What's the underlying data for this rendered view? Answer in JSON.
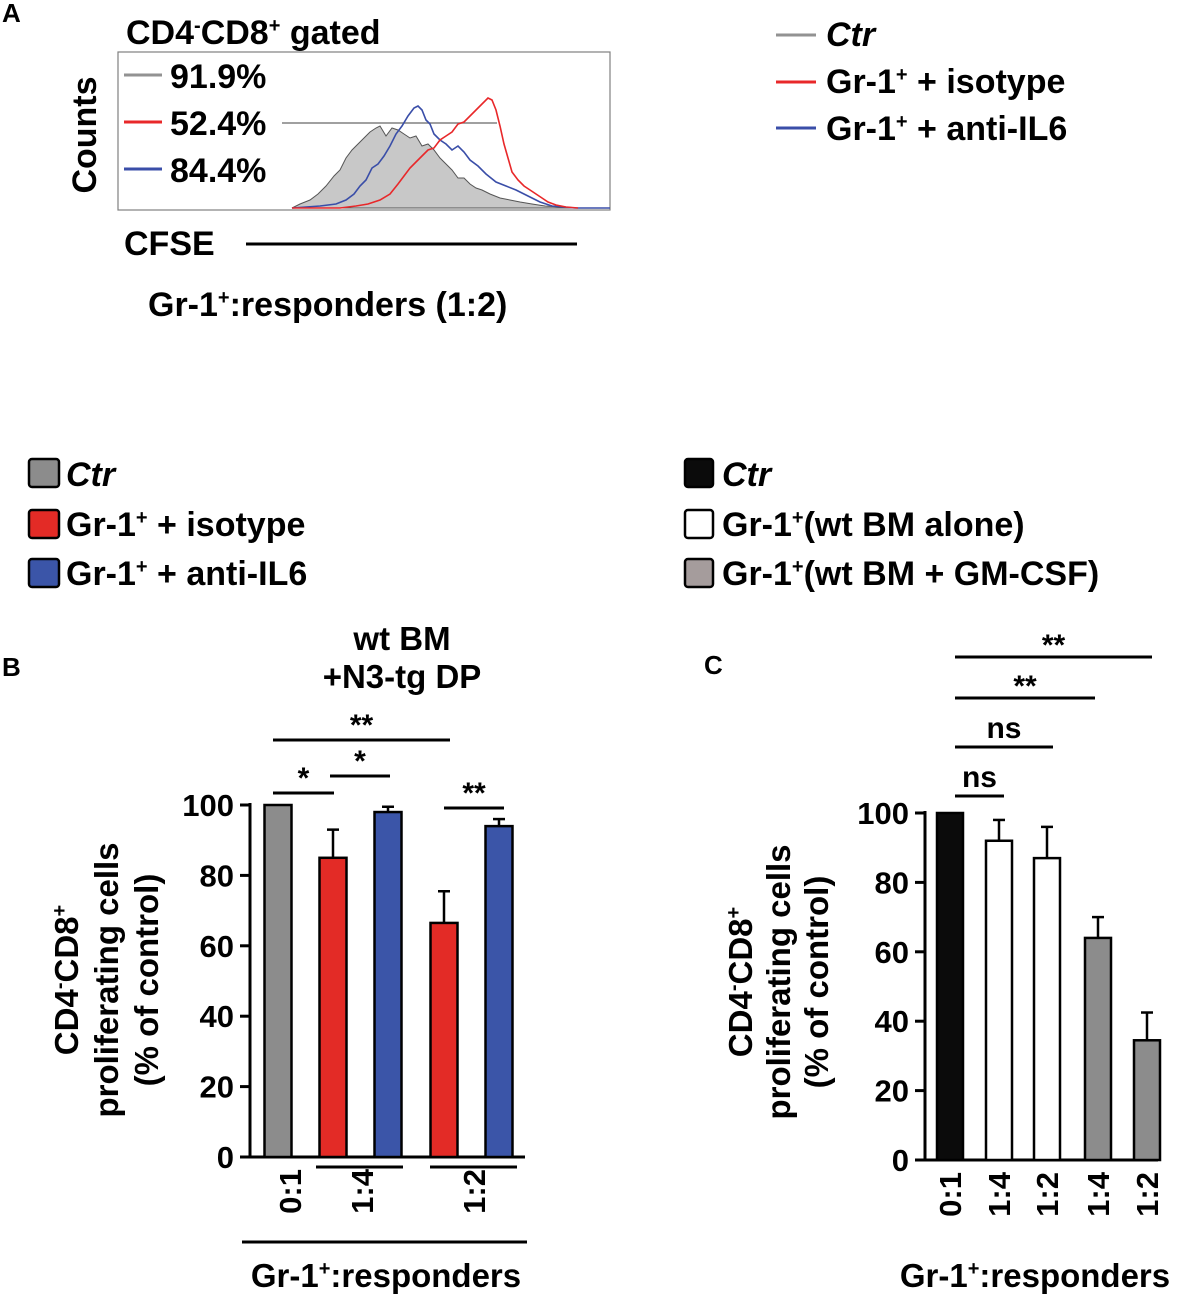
{
  "figure": {
    "panel_labels": {
      "a": "A",
      "b": "B",
      "c": "C"
    }
  },
  "panel_a": {
    "header_lead": "CD4",
    "header_sup1": "-",
    "header_mid": "CD8",
    "header_sup2": "+",
    "header_tail": " gated",
    "y_label": "Counts",
    "x_label": "CFSE",
    "subtitle_lead": "Gr-1",
    "subtitle_sup": "+",
    "subtitle_tail": ":responders (1:2)",
    "percentages": [
      {
        "value": "91.9%",
        "color": "#929292"
      },
      {
        "value": "52.4%",
        "color": "#e8282a"
      },
      {
        "value": "84.4%",
        "color": "#3a4ea8"
      }
    ],
    "legend": [
      {
        "label": "Ctr",
        "color": "#929292"
      },
      {
        "lead": "Gr-1",
        "sup": "+",
        "tail": " + isotype",
        "color": "#e8282a"
      },
      {
        "lead": "Gr-1",
        "sup": "+",
        "tail": " + anti-IL6",
        "color": "#3a4ea8"
      }
    ]
  },
  "legend_b": [
    {
      "label": "Ctr",
      "color": "#8c8c8c"
    },
    {
      "lead": "Gr-1",
      "sup": "+",
      "tail": " + isotype",
      "color": "#e32b26"
    },
    {
      "lead": "Gr-1",
      "sup": "+",
      "tail": " + anti-IL6",
      "color": "#3b55a8"
    }
  ],
  "legend_c": [
    {
      "label": "Ctr",
      "color": "#0b0b0b"
    },
    {
      "lead": "Gr-1",
      "sup": "+",
      "tail": "(wt BM alone)",
      "color": "#ffffff"
    },
    {
      "lead": "Gr-1",
      "sup": "+",
      "tail": "(wt BM + GM-CSF)",
      "color": "#a59c9c"
    }
  ],
  "y_axis_label": {
    "line1_lead": "CD4",
    "line1_sup1": "-",
    "line1_mid": "CD8",
    "line1_sup2": "+",
    "line2": "proliferating cells",
    "line3": "(% of control)"
  },
  "x_axis_title": {
    "lead": "Gr-1",
    "sup": "+",
    "tail": ":responders"
  },
  "chart_data": [
    {
      "type": "bar",
      "panel": "B",
      "title": [
        "wt BM",
        "+N3-tg DP"
      ],
      "ylabel": "CD4-CD8+ proliferating cells (% of control)",
      "xlabel": "Gr-1+:responders",
      "ylim": [
        0,
        100
      ],
      "yticks": [
        0,
        20,
        40,
        60,
        80,
        100
      ],
      "categories": [
        "0:1",
        "1:4",
        "1:2"
      ],
      "series": [
        {
          "name": "Ctr",
          "color": "#8c8c8c",
          "values": [
            100,
            null,
            null
          ],
          "errors": [
            0,
            null,
            null
          ]
        },
        {
          "name": "Gr-1+ + isotype",
          "color": "#e32b26",
          "values": [
            null,
            85,
            66.5
          ],
          "errors": [
            null,
            8,
            9
          ]
        },
        {
          "name": "Gr-1+ + anti-IL6",
          "color": "#3b55a8",
          "values": [
            null,
            98,
            94
          ],
          "errors": [
            null,
            1.5,
            2
          ]
        }
      ],
      "significance": [
        {
          "label": "*",
          "from": "Ctr 0:1",
          "to": "isotype 1:4"
        },
        {
          "label": "*",
          "from": "isotype 1:4",
          "to": "anti-IL6 1:4"
        },
        {
          "label": "**",
          "from": "Ctr 0:1",
          "to": "isotype 1:2"
        },
        {
          "label": "**",
          "from": "isotype 1:2",
          "to": "anti-IL6 1:2"
        }
      ]
    },
    {
      "type": "bar",
      "panel": "C",
      "ylabel": "CD4-CD8+ proliferating cells (% of control)",
      "xlabel": "Gr-1+:responders",
      "ylim": [
        0,
        100
      ],
      "yticks": [
        0,
        20,
        40,
        60,
        80,
        100
      ],
      "categories": [
        "0:1",
        "1:4",
        "1:2",
        "1:4",
        "1:2"
      ],
      "series": [
        {
          "name": "Ctr",
          "color": "#0b0b0b",
          "values": [
            100,
            null,
            null,
            null,
            null
          ],
          "errors": [
            0,
            null,
            null,
            null,
            null
          ]
        },
        {
          "name": "Gr-1+(wt BM alone)",
          "color": "#ffffff",
          "values": [
            null,
            92,
            87,
            null,
            null
          ],
          "errors": [
            null,
            6,
            9,
            null,
            null
          ]
        },
        {
          "name": "Gr-1+(wt BM + GM-CSF)",
          "color": "#8c8c8c",
          "values": [
            null,
            null,
            null,
            64,
            34.5
          ],
          "errors": [
            null,
            null,
            null,
            6,
            8
          ]
        }
      ],
      "significance": [
        {
          "label": "ns",
          "from": "0:1",
          "to": "1:4 alone"
        },
        {
          "label": "ns",
          "from": "0:1",
          "to": "1:2 alone"
        },
        {
          "label": "**",
          "from": "0:1",
          "to": "1:4 GM-CSF"
        },
        {
          "label": "**",
          "from": "0:1",
          "to": "1:2 GM-CSF"
        }
      ]
    }
  ]
}
